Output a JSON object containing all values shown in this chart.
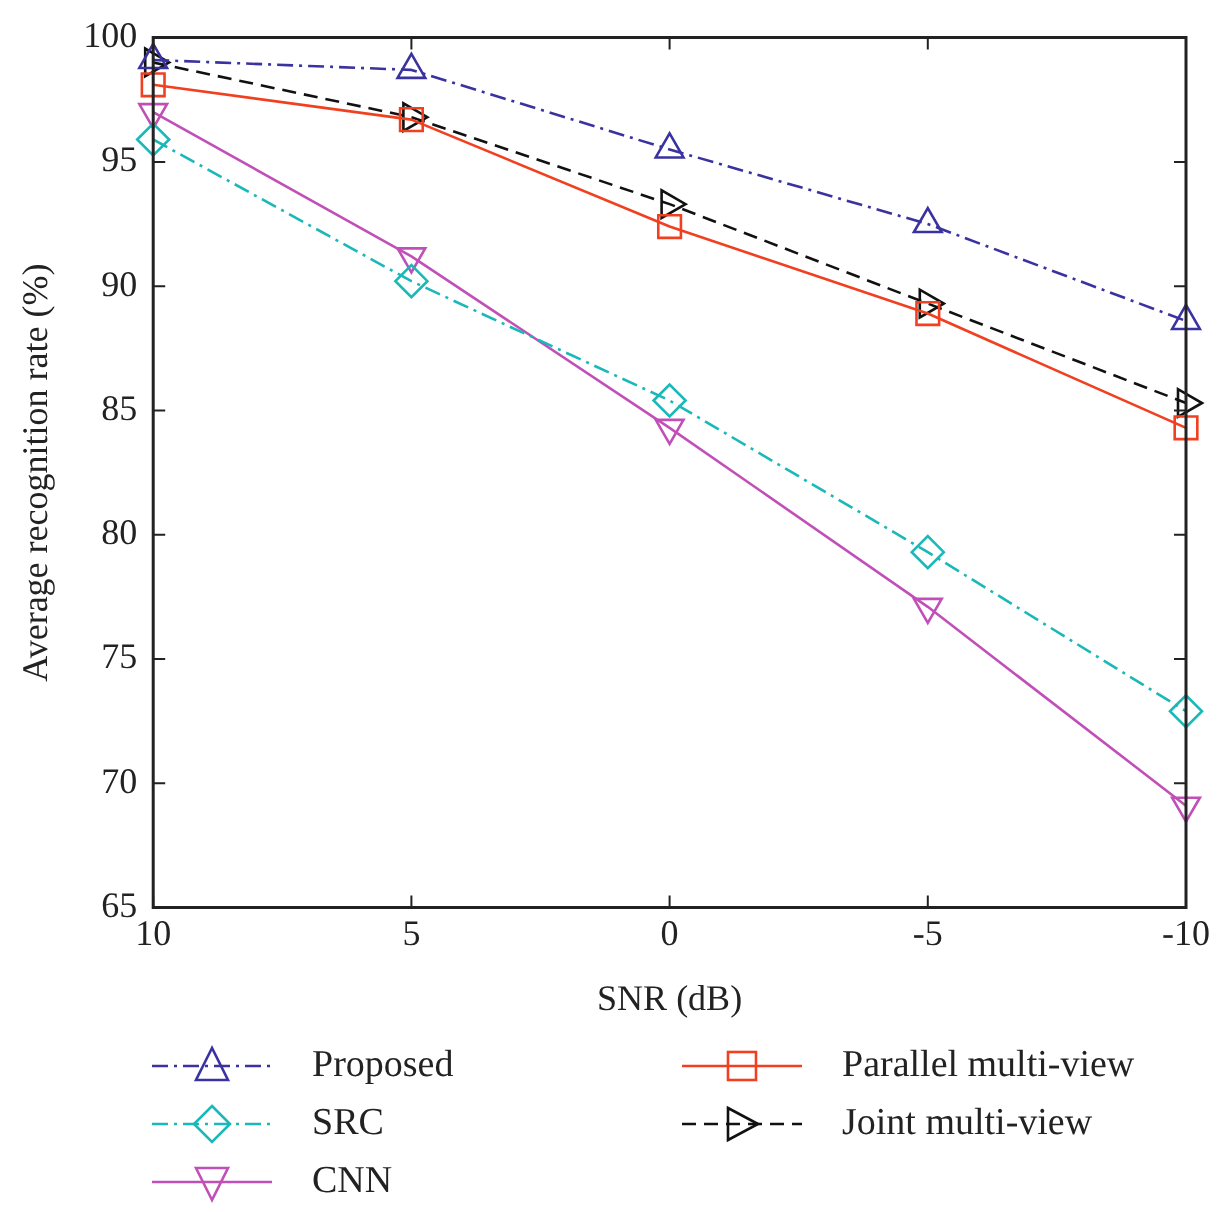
{
  "chart_data": {
    "type": "line",
    "xlabel": "SNR (dB)",
    "ylabel": "Average recognition rate (%)",
    "x": [
      10,
      5,
      0,
      -5,
      -10
    ],
    "xlim": [
      10,
      -10
    ],
    "xticks": [
      10,
      5,
      0,
      -5,
      -10
    ],
    "ylim": [
      65,
      100
    ],
    "yticks": [
      65,
      70,
      75,
      80,
      85,
      90,
      95,
      100
    ],
    "grid": false,
    "legend": "bottom",
    "series": [
      {
        "name": "Proposed",
        "color": "#3a32a0",
        "marker": "triangle",
        "line_style": "dashdot",
        "values": [
          99.1,
          98.7,
          95.5,
          92.5,
          88.6
        ]
      },
      {
        "name": "SRC",
        "color": "#1ab8b8",
        "marker": "diamond",
        "line_style": "dashdot",
        "values": [
          95.9,
          90.2,
          85.4,
          79.3,
          72.9
        ]
      },
      {
        "name": "CNN",
        "color": "#c050b8",
        "marker": "triangle-down",
        "line_style": "solid",
        "values": [
          97.0,
          91.2,
          84.3,
          77.1,
          69.1
        ]
      },
      {
        "name": "Parallel multi-view",
        "color": "#f04020",
        "marker": "square",
        "line_style": "solid",
        "values": [
          98.1,
          96.7,
          92.4,
          88.9,
          84.3
        ]
      },
      {
        "name": "Joint multi-view",
        "color": "#111111",
        "marker": "triangle-right",
        "line_style": "dashed",
        "values": [
          99.0,
          96.8,
          93.3,
          89.3,
          85.3
        ]
      }
    ]
  }
}
